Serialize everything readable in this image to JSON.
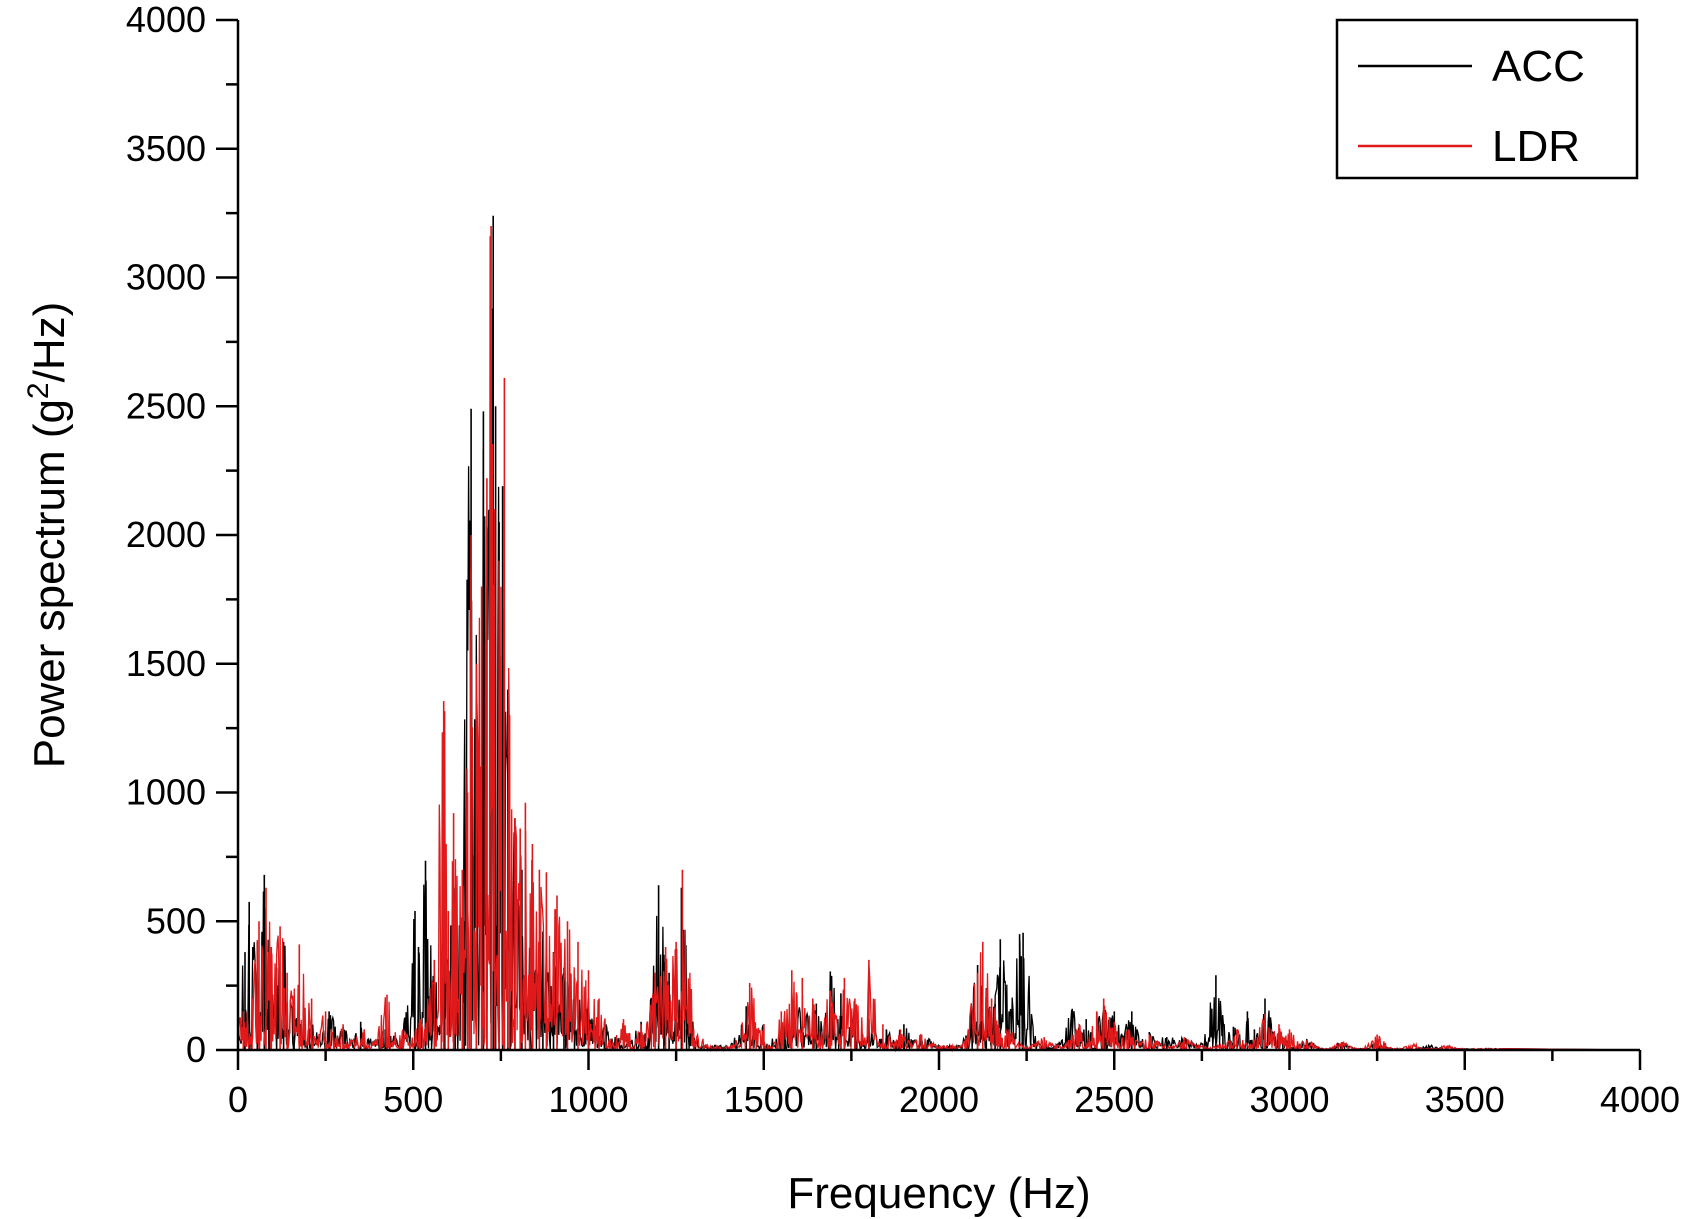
{
  "chart_data": {
    "type": "line",
    "title": "",
    "xlabel": "Frequency (Hz)",
    "ylabel_main": "Power spectrum (g",
    "ylabel_sup": "2",
    "ylabel_end": "/Hz)",
    "xlim": [
      0,
      4000
    ],
    "ylim": [
      0,
      4000
    ],
    "xticks": [
      0,
      500,
      1000,
      1500,
      2000,
      2500,
      3000,
      3500,
      4000
    ],
    "yticks": [
      0,
      500,
      1000,
      1500,
      2000,
      2500,
      3000,
      3500,
      4000
    ],
    "grid": false,
    "legend_position": "top-right",
    "series": [
      {
        "name": "ACC",
        "color": "#000000",
        "peaks": [
          [
            20,
            380
          ],
          [
            32,
            575
          ],
          [
            55,
            420
          ],
          [
            75,
            680
          ],
          [
            90,
            350
          ],
          [
            110,
            320
          ],
          [
            130,
            420
          ],
          [
            160,
            180
          ],
          [
            210,
            120
          ],
          [
            260,
            150
          ],
          [
            300,
            90
          ],
          [
            350,
            110
          ],
          [
            420,
            80
          ],
          [
            505,
            540
          ],
          [
            515,
            400
          ],
          [
            535,
            735
          ],
          [
            560,
            300
          ],
          [
            590,
            450
          ],
          [
            620,
            630
          ],
          [
            645,
            500
          ],
          [
            665,
            2490
          ],
          [
            680,
            1200
          ],
          [
            700,
            2480
          ],
          [
            710,
            1800
          ],
          [
            728,
            3240
          ],
          [
            735,
            2500
          ],
          [
            745,
            2050
          ],
          [
            755,
            2190
          ],
          [
            770,
            1400
          ],
          [
            790,
            900
          ],
          [
            810,
            700
          ],
          [
            840,
            520
          ],
          [
            870,
            460
          ],
          [
            900,
            380
          ],
          [
            930,
            320
          ],
          [
            960,
            280
          ],
          [
            1000,
            200
          ],
          [
            1050,
            100
          ],
          [
            1100,
            90
          ],
          [
            1150,
            110
          ],
          [
            1200,
            640
          ],
          [
            1215,
            370
          ],
          [
            1230,
            300
          ],
          [
            1250,
            250
          ],
          [
            1265,
            630
          ],
          [
            1280,
            80
          ],
          [
            1450,
            170
          ],
          [
            1500,
            100
          ],
          [
            1560,
            120
          ],
          [
            1610,
            210
          ],
          [
            1650,
            180
          ],
          [
            1690,
            305
          ],
          [
            1720,
            220
          ],
          [
            1760,
            170
          ],
          [
            1800,
            120
          ],
          [
            1850,
            80
          ],
          [
            1900,
            100
          ],
          [
            1950,
            60
          ],
          [
            2110,
            330
          ],
          [
            2135,
            240
          ],
          [
            2160,
            180
          ],
          [
            2175,
            430
          ],
          [
            2200,
            150
          ],
          [
            2230,
            450
          ],
          [
            2240,
            455
          ],
          [
            2380,
            160
          ],
          [
            2420,
            120
          ],
          [
            2470,
            170
          ],
          [
            2500,
            150
          ],
          [
            2550,
            150
          ],
          [
            2600,
            70
          ],
          [
            2650,
            50
          ],
          [
            2700,
            40
          ],
          [
            2790,
            290
          ],
          [
            2810,
            100
          ],
          [
            2840,
            90
          ],
          [
            2880,
            150
          ],
          [
            2900,
            80
          ],
          [
            2930,
            200
          ],
          [
            2970,
            60
          ],
          [
            3050,
            40
          ],
          [
            3150,
            30
          ],
          [
            3250,
            25
          ],
          [
            3400,
            15
          ]
        ]
      },
      {
        "name": "LDR",
        "color": "#e0191b",
        "peaks": [
          [
            15,
            150
          ],
          [
            40,
            200
          ],
          [
            60,
            500
          ],
          [
            80,
            630
          ],
          [
            95,
            400
          ],
          [
            120,
            480
          ],
          [
            140,
            300
          ],
          [
            175,
            410
          ],
          [
            210,
            200
          ],
          [
            250,
            150
          ],
          [
            300,
            100
          ],
          [
            360,
            80
          ],
          [
            425,
            215
          ],
          [
            470,
            80
          ],
          [
            520,
            120
          ],
          [
            560,
            350
          ],
          [
            580,
            380
          ],
          [
            587,
            1355
          ],
          [
            600,
            540
          ],
          [
            615,
            920
          ],
          [
            640,
            700
          ],
          [
            655,
            1000
          ],
          [
            665,
            2000
          ],
          [
            680,
            1500
          ],
          [
            695,
            1800
          ],
          [
            710,
            2220
          ],
          [
            722,
            3200
          ],
          [
            732,
            2100
          ],
          [
            745,
            1900
          ],
          [
            760,
            2610
          ],
          [
            775,
            1300
          ],
          [
            790,
            900
          ],
          [
            805,
            860
          ],
          [
            820,
            960
          ],
          [
            840,
            800
          ],
          [
            860,
            700
          ],
          [
            880,
            690
          ],
          [
            910,
            600
          ],
          [
            940,
            500
          ],
          [
            970,
            420
          ],
          [
            1000,
            310
          ],
          [
            1030,
            200
          ],
          [
            1100,
            120
          ],
          [
            1150,
            100
          ],
          [
            1190,
            300
          ],
          [
            1220,
            400
          ],
          [
            1250,
            420
          ],
          [
            1268,
            700
          ],
          [
            1300,
            80
          ],
          [
            1460,
            260
          ],
          [
            1500,
            100
          ],
          [
            1550,
            150
          ],
          [
            1580,
            310
          ],
          [
            1610,
            280
          ],
          [
            1640,
            200
          ],
          [
            1690,
            230
          ],
          [
            1730,
            280
          ],
          [
            1760,
            200
          ],
          [
            1800,
            350
          ],
          [
            1840,
            100
          ],
          [
            1890,
            80
          ],
          [
            1950,
            60
          ],
          [
            2110,
            300
          ],
          [
            2125,
            420
          ],
          [
            2150,
            200
          ],
          [
            2200,
            80
          ],
          [
            2300,
            50
          ],
          [
            2400,
            100
          ],
          [
            2450,
            150
          ],
          [
            2470,
            200
          ],
          [
            2500,
            110
          ],
          [
            2540,
            80
          ],
          [
            2600,
            60
          ],
          [
            2700,
            50
          ],
          [
            2850,
            80
          ],
          [
            2930,
            140
          ],
          [
            2970,
            100
          ],
          [
            3000,
            80
          ],
          [
            3050,
            40
          ],
          [
            3150,
            30
          ],
          [
            3250,
            60
          ],
          [
            3350,
            20
          ],
          [
            3450,
            15
          ]
        ]
      }
    ]
  }
}
